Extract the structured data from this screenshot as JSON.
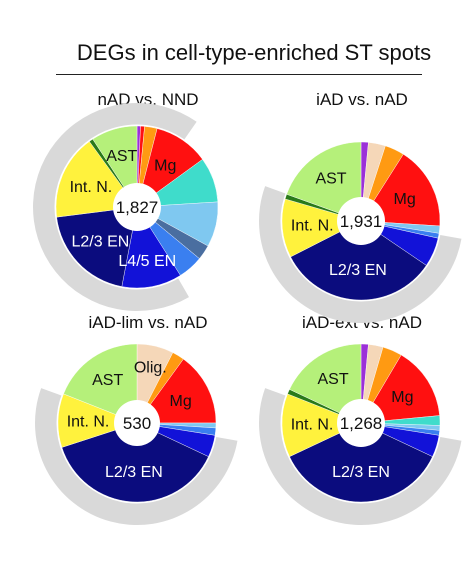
{
  "title": "DEGs in cell-type-enriched ST spots",
  "colors": {
    "ring": "#d9d9d9",
    "AST": "#b5f07a",
    "IntN": "#fff23d",
    "L23EN": "#0b0c7e",
    "L45EN": "#1212d8",
    "Mg": "#ff1010",
    "Olig": "#f5d7b8",
    "orange": "#ff9a12",
    "purple": "#9b30d8",
    "cyan": "#3fdccb",
    "lightblue": "#7fc8f0",
    "blue": "#3a7ff0",
    "steel": "#4a6ea0",
    "darkgreen": "#2a7a1a"
  },
  "chart_data": [
    {
      "type": "pie",
      "title": "nAD vs. NND",
      "total": "1,827",
      "labels_shown": [
        "AST",
        "Mg",
        "Int. N.",
        "L2/3 EN",
        "L4/5 EN"
      ],
      "ring_arc_deg": [
        150,
        395
      ],
      "slices": [
        {
          "label": "",
          "value": 0.7,
          "color": "#9b30d8"
        },
        {
          "label": "",
          "value": 0.8,
          "color": "#ff1010"
        },
        {
          "label": "",
          "value": 2.5,
          "color": "#ff9a12"
        },
        {
          "label": "Mg",
          "value": 11.0,
          "color": "#ff1010"
        },
        {
          "label": "",
          "value": 9.0,
          "color": "#3fdccb"
        },
        {
          "label": "",
          "value": 9.0,
          "color": "#7fc8f0"
        },
        {
          "label": "",
          "value": 3.0,
          "color": "#4a6ea0"
        },
        {
          "label": "",
          "value": 5.0,
          "color": "#3a7ff0"
        },
        {
          "label": "L4/5 EN",
          "value": 12.0,
          "color": "#1212d8"
        },
        {
          "label": "L2/3 EN",
          "value": 20.0,
          "color": "#0b0c7e"
        },
        {
          "label": "Int. N.",
          "value": 17.0,
          "color": "#fff23d"
        },
        {
          "label": "",
          "value": 0.8,
          "color": "#2a7a1a"
        },
        {
          "label": "AST",
          "value": 9.2,
          "color": "#b5f07a"
        }
      ]
    },
    {
      "type": "pie",
      "title": "iAD vs. nAD",
      "total": "1,931",
      "labels_shown": [
        "AST",
        "Mg",
        "Int. N.",
        "L2/3 EN"
      ],
      "ring_arc_deg": [
        100,
        290
      ],
      "slices": [
        {
          "label": "",
          "value": 1.5,
          "color": "#9b30d8"
        },
        {
          "label": "",
          "value": 3.5,
          "color": "#f5d7b8"
        },
        {
          "label": "",
          "value": 4.0,
          "color": "#ff9a12"
        },
        {
          "label": "Mg",
          "value": 17.0,
          "color": "#ff1010"
        },
        {
          "label": "",
          "value": 1.5,
          "color": "#7fc8f0"
        },
        {
          "label": "",
          "value": 1.0,
          "color": "#3a7ff0"
        },
        {
          "label": "",
          "value": 6.0,
          "color": "#1212d8"
        },
        {
          "label": "L2/3 EN",
          "value": 33.0,
          "color": "#0b0c7e"
        },
        {
          "label": "Int. N.",
          "value": 12.0,
          "color": "#fff23d"
        },
        {
          "label": "",
          "value": 1.0,
          "color": "#2a7a1a"
        },
        {
          "label": "AST",
          "value": 19.5,
          "color": "#b5f07a"
        }
      ]
    },
    {
      "type": "pie",
      "title": "iAD-lim vs. nAD",
      "total": "530",
      "labels_shown": [
        "AST",
        "Olig.",
        "Mg",
        "Int. N.",
        "L2/3 EN"
      ],
      "ring_arc_deg": [
        100,
        290
      ],
      "slices": [
        {
          "label": "Olig.",
          "value": 7.5,
          "color": "#f5d7b8"
        },
        {
          "label": "",
          "value": 2.5,
          "color": "#ff9a12"
        },
        {
          "label": "Mg",
          "value": 15.0,
          "color": "#ff1010"
        },
        {
          "label": "",
          "value": 1.0,
          "color": "#7fc8f0"
        },
        {
          "label": "",
          "value": 1.5,
          "color": "#3a7ff0"
        },
        {
          "label": "",
          "value": 4.5,
          "color": "#1212d8"
        },
        {
          "label": "L2/3 EN",
          "value": 38.0,
          "color": "#0b0c7e"
        },
        {
          "label": "Int. N.",
          "value": 11.0,
          "color": "#fff23d"
        },
        {
          "label": "AST",
          "value": 19.0,
          "color": "#b5f07a"
        }
      ]
    },
    {
      "type": "pie",
      "title": "iAD-ext vs. nAD",
      "total": "1,268",
      "labels_shown": [
        "AST",
        "Mg",
        "Int. N.",
        "L2/3 EN"
      ],
      "ring_arc_deg": [
        100,
        290
      ],
      "slices": [
        {
          "label": "",
          "value": 1.5,
          "color": "#9b30d8"
        },
        {
          "label": "",
          "value": 3.0,
          "color": "#f5d7b8"
        },
        {
          "label": "",
          "value": 4.0,
          "color": "#ff9a12"
        },
        {
          "label": "Mg",
          "value": 15.0,
          "color": "#ff1010"
        },
        {
          "label": "",
          "value": 2.0,
          "color": "#3fdccb"
        },
        {
          "label": "",
          "value": 1.0,
          "color": "#7fc8f0"
        },
        {
          "label": "",
          "value": 1.0,
          "color": "#3a7ff0"
        },
        {
          "label": "",
          "value": 4.5,
          "color": "#1212d8"
        },
        {
          "label": "L2/3 EN",
          "value": 36.0,
          "color": "#0b0c7e"
        },
        {
          "label": "Int. N.",
          "value": 13.0,
          "color": "#fff23d"
        },
        {
          "label": "",
          "value": 1.0,
          "color": "#2a7a1a"
        },
        {
          "label": "AST",
          "value": 18.0,
          "color": "#b5f07a"
        }
      ]
    }
  ]
}
